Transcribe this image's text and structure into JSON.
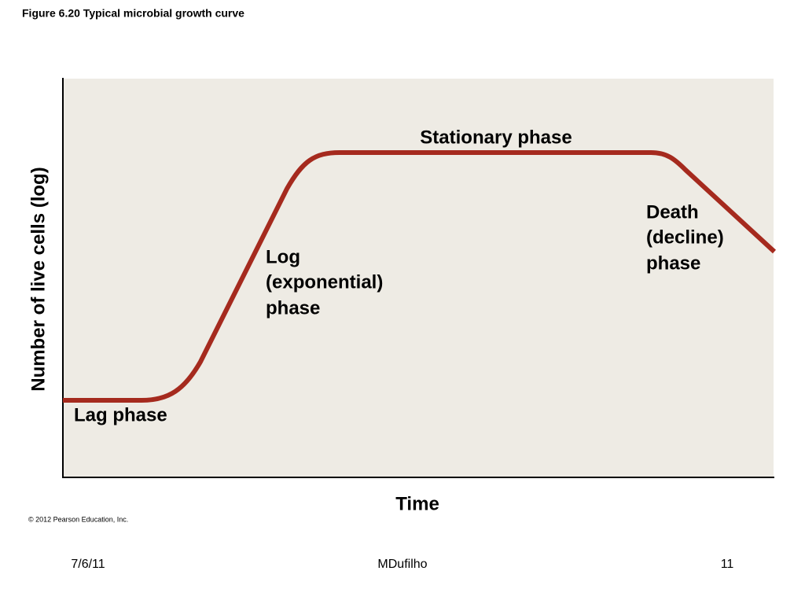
{
  "figure_title": "Figure 6.20  Typical microbial growth curve",
  "y_axis_label": "Number of live cells (log)",
  "x_axis_label": "Time",
  "phases": {
    "lag": {
      "lines": [
        "Lag phase"
      ]
    },
    "log": {
      "lines": [
        "Log",
        "(exponential)",
        "phase"
      ]
    },
    "stationary": {
      "lines": [
        "Stationary phase"
      ]
    },
    "death": {
      "lines": [
        "Death",
        "(decline)",
        "phase"
      ]
    }
  },
  "copyright": "© 2012 Pearson Education, Inc.",
  "footer": {
    "date": "7/6/11",
    "author": "MDufilho",
    "page": "11"
  }
}
